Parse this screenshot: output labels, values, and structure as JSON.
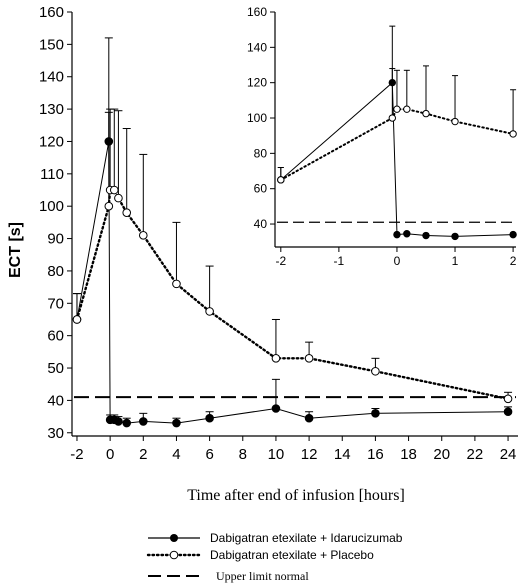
{
  "chart_data": [
    {
      "type": "line",
      "panel": "main",
      "title": "",
      "xlabel": "Time after end of infusion [hours]",
      "ylabel": "ECT [s]",
      "xlim": [
        -2.3,
        24.6
      ],
      "ylim": [
        29,
        160
      ],
      "xticks": [
        -2,
        0,
        2,
        4,
        6,
        8,
        10,
        12,
        14,
        16,
        18,
        20,
        22,
        24
      ],
      "yticks": [
        30,
        40,
        50,
        60,
        70,
        80,
        90,
        100,
        110,
        120,
        130,
        140,
        150,
        160
      ],
      "grid": false,
      "reference_line": {
        "label": "Upper limit normal",
        "y": 41
      },
      "series": [
        {
          "name": "Dabigatran etexilate + Idarucizumab",
          "marker": "filled-circle",
          "line": "solid",
          "x": [
            -2,
            -0.08,
            0,
            0.25,
            0.5,
            1,
            2,
            4,
            6,
            10,
            12,
            16,
            24
          ],
          "y": [
            65,
            120,
            34,
            34,
            33.5,
            33,
            33.5,
            33,
            34.5,
            37.5,
            34.5,
            36,
            36.5
          ],
          "err_upper": [
            8,
            32,
            1.5,
            1.5,
            1.5,
            1.5,
            2.5,
            1.5,
            2,
            9,
            2,
            1.5,
            1.5
          ]
        },
        {
          "name": "Dabigatran etexilate + Placebo",
          "marker": "open-circle",
          "line": "dotted",
          "x": [
            -2,
            -0.08,
            0,
            0.25,
            0.5,
            1,
            2,
            4,
            6,
            10,
            12,
            16,
            24
          ],
          "y": [
            65,
            100,
            105,
            105,
            102.5,
            98,
            91,
            76,
            67.5,
            53,
            53,
            49,
            40.5
          ],
          "err_upper": [
            8,
            29,
            25,
            25,
            27,
            26,
            25,
            19,
            14,
            12,
            5,
            4,
            2
          ]
        }
      ]
    },
    {
      "type": "line",
      "panel": "inset",
      "title": "",
      "xlabel": "",
      "ylabel": "",
      "xlim": [
        -2.1,
        2.05
      ],
      "ylim": [
        27,
        160
      ],
      "xticks": [
        -2,
        -1,
        0,
        1,
        2
      ],
      "yticks": [
        40,
        60,
        80,
        100,
        120,
        140,
        160
      ],
      "grid": false,
      "reference_line": {
        "y": 41
      },
      "series": [
        {
          "name": "Dabigatran etexilate + Idarucizumab",
          "marker": "filled-circle",
          "line": "solid",
          "x": [
            -2,
            -0.08,
            0,
            0.17,
            0.5,
            1,
            2
          ],
          "y": [
            65,
            120,
            34,
            34.5,
            33.5,
            33,
            34
          ],
          "err_upper": [
            7,
            32,
            1,
            1,
            1,
            1,
            1
          ]
        },
        {
          "name": "Dabigatran etexilate + Placebo",
          "marker": "open-circle",
          "line": "dotted",
          "x": [
            -2,
            -0.08,
            0,
            0.17,
            0.5,
            1,
            2
          ],
          "y": [
            65,
            100,
            105,
            105,
            102.5,
            98,
            91
          ],
          "err_upper": [
            7,
            28,
            22,
            22,
            27,
            26,
            25
          ]
        }
      ]
    }
  ],
  "legend": {
    "items": [
      {
        "label": "Dabigatran etexilate + Idarucizumab",
        "style": "solid-filled"
      },
      {
        "label": "Dabigatran etexilate + Placebo",
        "style": "dotted-open"
      },
      {
        "label": "Upper limit normal",
        "style": "dashed"
      }
    ]
  },
  "colors": {
    "ink": "#000000",
    "background": "#ffffff"
  }
}
